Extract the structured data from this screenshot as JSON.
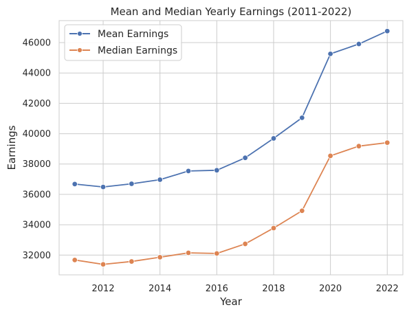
{
  "chart_data": {
    "type": "line",
    "title": "Mean and Median Yearly Earnings (2011-2022)",
    "xlabel": "Year",
    "ylabel": "Earnings",
    "x": [
      2011,
      2012,
      2013,
      2014,
      2015,
      2016,
      2017,
      2018,
      2019,
      2020,
      2021,
      2022
    ],
    "series": [
      {
        "name": "Mean Earnings",
        "color": "#4c72b0",
        "values": [
          36680,
          36490,
          36700,
          36970,
          37540,
          37590,
          38410,
          39690,
          41050,
          45260,
          45910,
          46760
        ]
      },
      {
        "name": "Median Earnings",
        "color": "#dd8452",
        "values": [
          31680,
          31390,
          31580,
          31860,
          32150,
          32110,
          32740,
          33780,
          34920,
          38540,
          39180,
          39410
        ]
      }
    ],
    "xticks": [
      2012,
      2014,
      2016,
      2018,
      2020,
      2022
    ],
    "yticks": [
      32000,
      34000,
      36000,
      38000,
      40000,
      42000,
      44000,
      46000
    ],
    "xlim": [
      2010.45,
      2022.55
    ],
    "ylim": [
      30700,
      47450
    ],
    "grid": true,
    "legend_position": "top-left",
    "style": {
      "grid_color": "#cccccc",
      "axis_color": "#cccccc",
      "text_color": "#262626"
    }
  }
}
